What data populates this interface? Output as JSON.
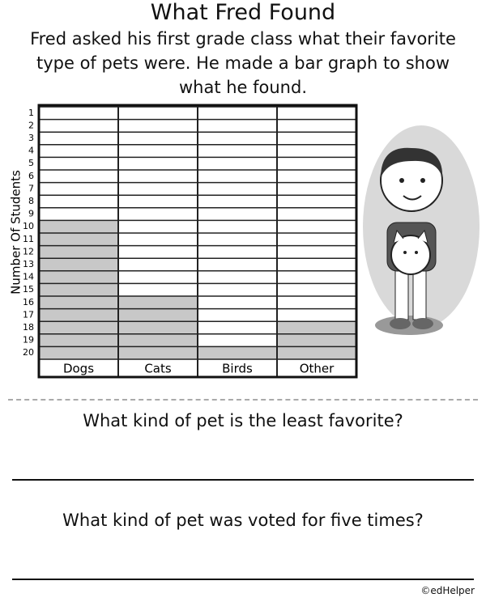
{
  "title": "What Fred Found",
  "intro": "Fred asked his first grade class what their favorite type of pets were. He made a bar graph to show what he found.",
  "chart_data": {
    "type": "bar",
    "y_label": "Number Of Students",
    "categories": [
      "Dogs",
      "Cats",
      "Birds",
      "Other"
    ],
    "values": [
      11,
      5,
      1,
      3
    ],
    "color": "#c8c8c8",
    "row_labels": [
      1,
      2,
      3,
      4,
      5,
      6,
      7,
      8,
      9,
      10,
      11,
      12,
      13,
      14,
      15,
      16,
      17,
      18,
      19,
      20
    ]
  },
  "questions": [
    "What kind of pet is the least favorite?",
    "What kind of pet was voted for five times?"
  ],
  "copyright": "©edHelper"
}
